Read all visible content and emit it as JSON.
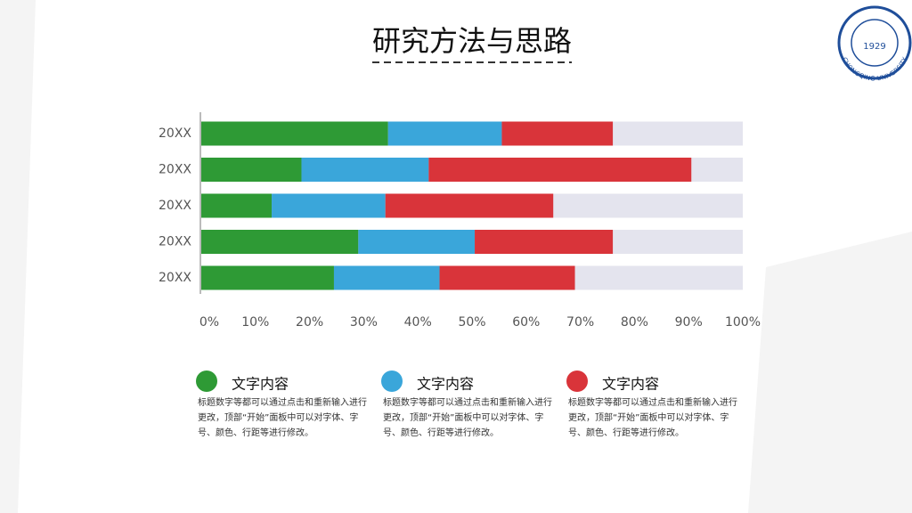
{
  "chart_data": {
    "type": "bar",
    "orientation": "horizontal",
    "stacked": true,
    "title": "研究方法与思路",
    "categories": [
      "20XX",
      "20XX",
      "20XX",
      "20XX",
      "20XX"
    ],
    "series": [
      {
        "name": "文字内容",
        "color": "#2e9a35",
        "values": [
          34.5,
          18.5,
          13,
          29,
          24.5
        ]
      },
      {
        "name": "文字内容",
        "color": "#3aa6da",
        "values": [
          21,
          23.5,
          21,
          21.5,
          19.5
        ]
      },
      {
        "name": "文字内容",
        "color": "#d9343a",
        "values": [
          20.5,
          48.5,
          31,
          25.5,
          25
        ]
      }
    ],
    "xlim": [
      0,
      100
    ],
    "xticks": [
      {
        "value": 0,
        "label": "0%"
      },
      {
        "value": 10,
        "label": "10%"
      },
      {
        "value": 20,
        "label": "20%"
      },
      {
        "value": 30,
        "label": "30%"
      },
      {
        "value": 40,
        "label": "40%"
      },
      {
        "value": 50,
        "label": "50%"
      },
      {
        "value": 60,
        "label": "60%"
      },
      {
        "value": 70,
        "label": "70%"
      },
      {
        "value": 80,
        "label": "80%"
      },
      {
        "value": 90,
        "label": "90%"
      },
      {
        "value": 100,
        "label": "100%"
      }
    ],
    "track_color": "#e4e4ee"
  },
  "legend_notes": [
    "标题数字等都可以通过点击和重新输入进行更改，顶部“开始”面板中可以对字体、字号、颜色、行距等进行修改。",
    "标题数字等都可以通过点击和重新输入进行更改，顶部“开始”面板中可以对字体、字号、颜色、行距等进行修改。",
    "标题数字等都可以通过点击和重新输入进行更改，顶部“开始”面板中可以对字体、字号、颜色、行距等进行修改。"
  ],
  "logo": {
    "name": "CHONGQING UNIVERSITY",
    "year": "1929"
  }
}
